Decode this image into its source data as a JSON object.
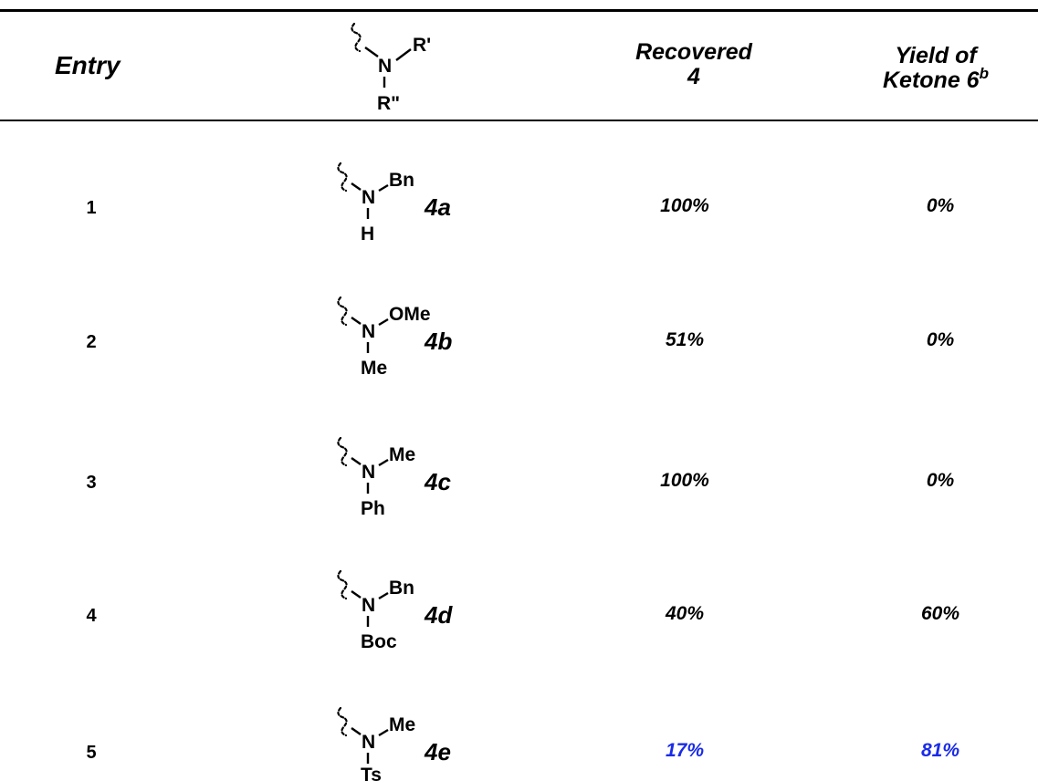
{
  "header": {
    "entry": "Entry",
    "structure_atom": "N",
    "structure_r1": "R'",
    "structure_r2": "R\"",
    "recovered_line1": "Recovered",
    "recovered_line2": "4",
    "yield_line1": "Yield of",
    "yield_line2": "Ketone 6",
    "yield_sup": "b"
  },
  "rows": [
    {
      "entry": "1",
      "substituent": "Bn",
      "n_sub": "H",
      "compound": "4a",
      "recovered": "100%",
      "yield": "0%"
    },
    {
      "entry": "2",
      "substituent": "OMe",
      "n_sub": "Me",
      "compound": "4b",
      "recovered": "51%",
      "yield": "0%"
    },
    {
      "entry": "3",
      "substituent": "Me",
      "n_sub": "Ph",
      "compound": "4c",
      "recovered": "100%",
      "yield": "0%"
    },
    {
      "entry": "4",
      "substituent": "Bn",
      "n_sub": "Boc",
      "compound": "4d",
      "recovered": "40%",
      "yield": "60%"
    },
    {
      "entry": "5",
      "substituent": "Me",
      "n_sub": "Ts",
      "compound": "4e",
      "recovered": "17%",
      "yield": "81%"
    }
  ],
  "colors": {
    "highlight": "#1a2be8",
    "text": "#000000"
  }
}
